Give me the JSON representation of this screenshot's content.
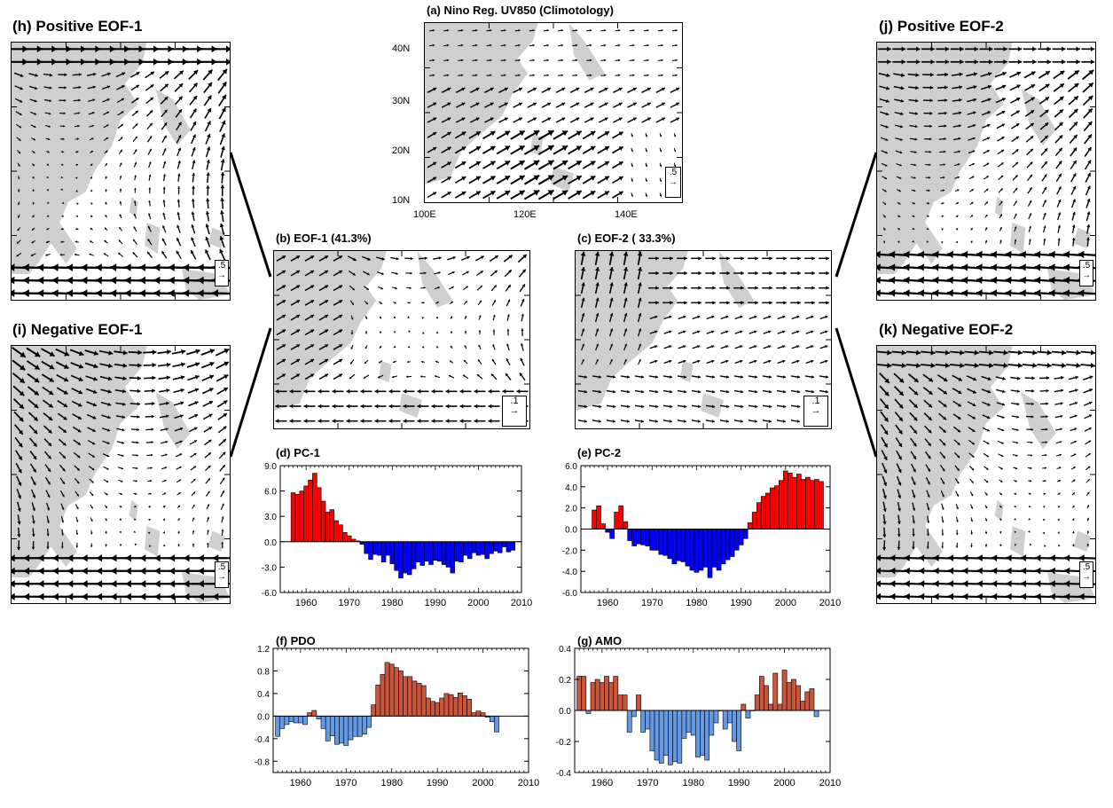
{
  "panels": {
    "a": {
      "title": "(a) Nino Reg. UV850 (Climotology)",
      "ref": ".5",
      "yticks": [
        "40N",
        "30N",
        "20N",
        "10N"
      ],
      "xticks": [
        "100E",
        "120E",
        "140E"
      ]
    },
    "b": {
      "title": "(b) EOF-1 (41.3%)",
      "ref": ".1"
    },
    "c": {
      "title": "(c) EOF-2 ( 33.3%)",
      "ref": ".1"
    },
    "h": {
      "title": "(h) Positive EOF-1",
      "ref": ".5"
    },
    "i": {
      "title": "(i) Negative EOF-1",
      "ref": ".5"
    },
    "j": {
      "title": "(j) Positive EOF-2",
      "ref": ".5"
    },
    "k": {
      "title": "(k) Negative EOF-2",
      "ref": ".5"
    }
  },
  "colors": {
    "land": "#cfcfcf",
    "pos_pc": "#ff0000",
    "neg_pc": "#0000ff",
    "pos_idx": "#c9553d",
    "neg_idx": "#6699e3"
  },
  "chart_data": [
    {
      "id": "pc1",
      "type": "bar",
      "title": "(d) PC-1",
      "x_start": 1957,
      "xlim": [
        1954,
        2010
      ],
      "ylim": [
        -6,
        9
      ],
      "yticks": [
        9,
        6,
        3,
        0,
        -3,
        -6
      ],
      "ytick_labels": [
        "9.0",
        "6.0",
        "3.0",
        "0.0",
        "-3.0",
        "-6.0"
      ],
      "xticks": [
        1960,
        1970,
        1980,
        1990,
        2000,
        2010
      ],
      "values": [
        5.8,
        5.6,
        6.0,
        6.6,
        7.3,
        8.1,
        6.4,
        4.8,
        3.5,
        3.8,
        2.5,
        2.0,
        1.1,
        0.7,
        0.3,
        0.1,
        -0.3,
        -1.4,
        -2.1,
        -1.5,
        -1.6,
        -2.4,
        -1.6,
        -2.6,
        -3.4,
        -4.3,
        -3.7,
        -3.9,
        -3.2,
        -2.4,
        -2.8,
        -2.3,
        -2.7,
        -2.2,
        -2.3,
        -2.7,
        -3.0,
        -3.7,
        -2.3,
        -2.4,
        -1.6,
        -2.0,
        -1.3,
        -1.6,
        -1.5,
        -2.0,
        -1.4,
        -1.1,
        -1.3,
        -0.6,
        -1.2,
        -1.0
      ]
    },
    {
      "id": "pc2",
      "type": "bar",
      "title": "(e) PC-2",
      "x_start": 1957,
      "xlim": [
        1954,
        2010
      ],
      "ylim": [
        -6,
        6
      ],
      "yticks": [
        6,
        4,
        2,
        0,
        -2,
        -4,
        -6
      ],
      "ytick_labels": [
        "6.0",
        "4.0",
        "2.0",
        "0.0",
        "-2.0",
        "-4.0",
        "-6.0"
      ],
      "xticks": [
        1960,
        1970,
        1980,
        1990,
        2000,
        2010
      ],
      "values": [
        1.8,
        2.2,
        0.5,
        -0.3,
        -0.9,
        1.6,
        2.2,
        0.7,
        -1.1,
        -1.6,
        -1.4,
        -1.5,
        -1.6,
        -2.0,
        -2.0,
        -2.4,
        -2.5,
        -2.8,
        -3.3,
        -3.0,
        -3.1,
        -3.5,
        -3.9,
        -4.1,
        -3.9,
        -3.6,
        -4.6,
        -3.6,
        -3.9,
        -3.3,
        -2.9,
        -2.6,
        -2.0,
        -1.5,
        -0.9,
        0.6,
        1.6,
        2.5,
        3.1,
        3.4,
        3.9,
        4.1,
        4.6,
        5.5,
        5.3,
        4.9,
        5.2,
        4.7,
        4.9,
        4.6,
        4.7,
        4.5
      ]
    },
    {
      "id": "pdo",
      "type": "bar",
      "title": "(f) PDO",
      "x_start": 1955,
      "xlim": [
        1954,
        2010
      ],
      "ylim": [
        -1.0,
        1.2
      ],
      "yticks": [
        1.2,
        0.8,
        0.4,
        0.0,
        -0.4,
        -0.8
      ],
      "ytick_labels": [
        "1.2",
        "0.8",
        "0.4",
        "0.0",
        "-0.4",
        "-0.8"
      ],
      "xticks": [
        1960,
        1970,
        1980,
        1990,
        2000,
        2010
      ],
      "values": [
        -0.36,
        -0.22,
        -0.15,
        -0.1,
        -0.12,
        -0.12,
        -0.15,
        0.06,
        0.1,
        -0.05,
        -0.22,
        -0.44,
        -0.35,
        -0.5,
        -0.48,
        -0.52,
        -0.42,
        -0.36,
        -0.36,
        -0.32,
        -0.2,
        0.2,
        0.55,
        0.74,
        0.95,
        0.92,
        0.86,
        0.8,
        0.7,
        0.7,
        0.62,
        0.58,
        0.54,
        0.32,
        0.26,
        0.24,
        0.32,
        0.4,
        0.38,
        0.33,
        0.41,
        0.36,
        0.3,
        0.06,
        0.09,
        0.06,
        -0.02,
        -0.1,
        -0.28
      ]
    },
    {
      "id": "amo",
      "type": "bar",
      "title": "(g) AMO",
      "x_start": 1955,
      "xlim": [
        1954,
        2010
      ],
      "ylim": [
        -0.4,
        0.4
      ],
      "yticks": [
        0.4,
        0.2,
        0.0,
        -0.2,
        -0.4
      ],
      "ytick_labels": [
        "0.4",
        "0.2",
        "0.0",
        "-0.2",
        "-0.4"
      ],
      "xticks": [
        1960,
        1970,
        1980,
        1990,
        2000,
        2010
      ],
      "values": [
        0.22,
        0.22,
        -0.02,
        0.18,
        0.2,
        0.18,
        0.22,
        0.18,
        0.22,
        0.1,
        0.1,
        -0.14,
        -0.04,
        0.1,
        -0.14,
        -0.12,
        -0.26,
        -0.32,
        -0.34,
        -0.29,
        -0.35,
        -0.33,
        -0.34,
        -0.18,
        -0.14,
        -0.16,
        -0.3,
        -0.29,
        -0.32,
        -0.16,
        -0.08,
        0.0,
        -0.12,
        -0.08,
        -0.2,
        -0.26,
        0.04,
        -0.05,
        0.0,
        0.1,
        0.22,
        0.16,
        0.04,
        0.24,
        0.04,
        0.26,
        0.18,
        0.2,
        0.16,
        0.06,
        0.12,
        0.14,
        -0.04
      ]
    }
  ]
}
